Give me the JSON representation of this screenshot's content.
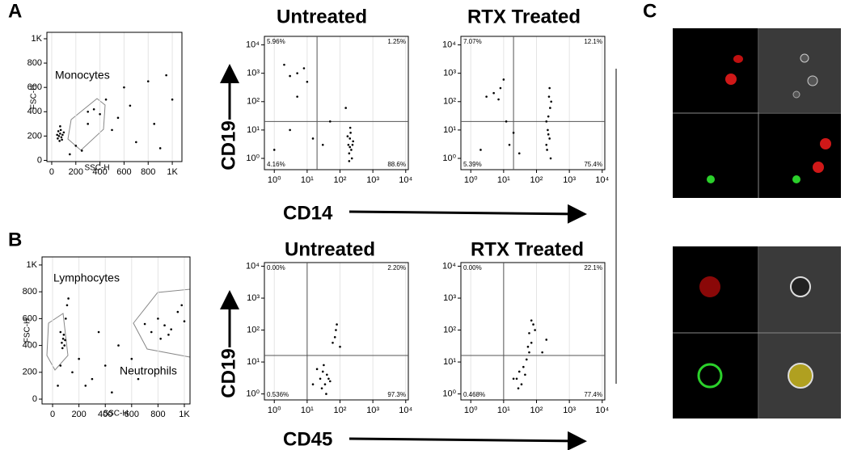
{
  "figure": {
    "panels": [
      "A",
      "B",
      "C"
    ],
    "row_a": {
      "xlabel": "CD14",
      "ylabel": "CD19"
    },
    "row_b": {
      "xlabel": "CD45",
      "ylabel": "CD19"
    }
  },
  "chart_data": [
    {
      "type": "scatter",
      "log": false,
      "color": "#000000",
      "grid": true,
      "xlabel": "SSC-H",
      "ylabel": "FSC-H",
      "annotations": [
        "Monocytes"
      ],
      "xlim": [
        -40,
        1080
      ],
      "ylim": [
        -10,
        1053
      ],
      "xticks": [
        0,
        200,
        400,
        600,
        800,
        {
          "value": 1000,
          "label": "1K"
        }
      ],
      "yticks": [
        0,
        200,
        400,
        600,
        800,
        {
          "value": 1000,
          "label": "1K"
        }
      ],
      "x": [
        50,
        60,
        70,
        80,
        55,
        90,
        65,
        75,
        100,
        45,
        85,
        70,
        200,
        300,
        350,
        400,
        300,
        450,
        500,
        600,
        700,
        800,
        900,
        950,
        1000,
        250,
        150,
        550,
        650,
        850
      ],
      "values": [
        180,
        200,
        220,
        190,
        240,
        210,
        160,
        250,
        230,
        210,
        170,
        280,
        120,
        300,
        420,
        380,
        400,
        500,
        250,
        600,
        150,
        650,
        100,
        700,
        500,
        80,
        50,
        350,
        450,
        300
      ]
    },
    {
      "type": "scatter",
      "log": true,
      "color": "#000000",
      "grid": true,
      "title": "Untreated",
      "quadrant": {
        "x": 20,
        "y": 20
      },
      "quadrant_labels": [
        "5.96%",
        "1.25%",
        "4.16%",
        "88.6%"
      ],
      "xlim": [
        0.5,
        12000
      ],
      "ylim": [
        0.4,
        20000
      ],
      "xticks": [
        {
          "value": 1,
          "label": "10⁰"
        },
        {
          "value": 10,
          "label": "10¹"
        },
        {
          "value": 100,
          "label": "10²"
        },
        {
          "value": 1000,
          "label": "10³"
        },
        {
          "value": 10000,
          "label": "10⁴"
        }
      ],
      "yticks": [
        {
          "value": 1,
          "label": "10⁰"
        },
        {
          "value": 10,
          "label": "10¹"
        },
        {
          "value": 100,
          "label": "10²"
        },
        {
          "value": 1000,
          "label": "10³"
        },
        {
          "value": 10000,
          "label": "10⁴"
        }
      ],
      "x": [
        180,
        200,
        220,
        190,
        250,
        210,
        230,
        170,
        200,
        240,
        205,
        190,
        3,
        5,
        8,
        2,
        10,
        5,
        3,
        15,
        30,
        50,
        150,
        1
      ],
      "values": [
        3,
        5,
        2,
        1.5,
        4,
        8,
        1,
        6,
        2.5,
        3,
        12,
        0.8,
        800,
        1000,
        1500,
        2000,
        500,
        150,
        10,
        5,
        3,
        20,
        60,
        2
      ]
    },
    {
      "type": "scatter",
      "log": true,
      "color": "#000000",
      "grid": true,
      "title": "RTX Treated",
      "quadrant": {
        "x": 20,
        "y": 20
      },
      "quadrant_labels": [
        "7.07%",
        "12.1%",
        "5.39%",
        "75.4%"
      ],
      "xlim": [
        0.5,
        12000
      ],
      "ylim": [
        0.4,
        20000
      ],
      "xticks": [
        {
          "value": 1,
          "label": "10⁰"
        },
        {
          "value": 10,
          "label": "10¹"
        },
        {
          "value": 100,
          "label": "10²"
        },
        {
          "value": 1000,
          "label": "10³"
        },
        {
          "value": 10000,
          "label": "10⁴"
        }
      ],
      "yticks": [
        {
          "value": 1,
          "label": "10⁰"
        },
        {
          "value": 10,
          "label": "10¹"
        },
        {
          "value": 100,
          "label": "10²"
        },
        {
          "value": 1000,
          "label": "10³"
        },
        {
          "value": 10000,
          "label": "10⁴"
        }
      ],
      "x": [
        200,
        250,
        220,
        230,
        260,
        240,
        250,
        210,
        270,
        200,
        280,
        230,
        5,
        8,
        10,
        7,
        3,
        12,
        15,
        2,
        20,
        30
      ],
      "values": [
        3,
        5,
        10,
        30,
        60,
        150,
        300,
        2,
        1,
        20,
        100,
        7,
        200,
        300,
        600,
        120,
        150,
        20,
        3,
        2,
        8,
        1.5
      ]
    },
    {
      "type": "scatter",
      "log": false,
      "color": "#000000",
      "grid": true,
      "xlabel": "SSC-H",
      "ylabel": "FSC-H",
      "annotations": [
        "Lymphocytes",
        "Neutrophils"
      ],
      "xlim": [
        -80,
        1043
      ],
      "ylim": [
        -36,
        1060
      ],
      "xticks": [
        0,
        200,
        400,
        600,
        800,
        {
          "value": 1000,
          "label": "1K"
        }
      ],
      "yticks": [
        0,
        200,
        400,
        600,
        800,
        {
          "value": 1000,
          "label": "1K"
        }
      ],
      "x": [
        70,
        80,
        90,
        85,
        75,
        95,
        60,
        100,
        110,
        120,
        750,
        800,
        850,
        900,
        950,
        1000,
        880,
        820,
        980,
        700,
        200,
        300,
        400,
        500,
        600,
        250,
        350,
        450,
        650,
        150,
        40,
        60
      ],
      "values": [
        420,
        450,
        400,
        480,
        380,
        440,
        500,
        600,
        700,
        750,
        500,
        600,
        550,
        520,
        650,
        580,
        480,
        450,
        700,
        560,
        300,
        150,
        250,
        400,
        300,
        100,
        500,
        50,
        150,
        200,
        100,
        250
      ]
    },
    {
      "type": "scatter",
      "log": true,
      "color": "#000000",
      "grid": true,
      "title": "Untreated",
      "quadrant": {
        "x": 10,
        "y": 16
      },
      "quadrant_labels": [
        "0.00%",
        "2.20%",
        "0.536%",
        "97.3%"
      ],
      "xlim": [
        0.5,
        12000
      ],
      "ylim": [
        0.65,
        13000
      ],
      "xticks": [
        {
          "value": 1,
          "label": "10⁰"
        },
        {
          "value": 10,
          "label": "10¹"
        },
        {
          "value": 100,
          "label": "10²"
        },
        {
          "value": 1000,
          "label": "10³"
        },
        {
          "value": 10000,
          "label": "10⁴"
        }
      ],
      "yticks": [
        {
          "value": 1,
          "label": "10⁰"
        },
        {
          "value": 10,
          "label": "10¹"
        },
        {
          "value": 100,
          "label": "10²"
        },
        {
          "value": 1000,
          "label": "10³"
        },
        {
          "value": 10000,
          "label": "10⁴"
        }
      ],
      "x": [
        25,
        30,
        35,
        40,
        28,
        20,
        45,
        32,
        38,
        50,
        60,
        70,
        80,
        75,
        15,
        100
      ],
      "values": [
        3,
        5,
        2,
        4,
        1.5,
        6,
        3,
        8,
        1,
        2.5,
        40,
        60,
        150,
        100,
        2,
        30
      ]
    },
    {
      "type": "scatter",
      "log": true,
      "color": "#000000",
      "grid": true,
      "title": "RTX Treated",
      "quadrant": {
        "x": 10,
        "y": 16
      },
      "quadrant_labels": [
        "0.00%",
        "22.1%",
        "0.468%",
        "77.4%"
      ],
      "xlim": [
        0.5,
        12000
      ],
      "ylim": [
        0.65,
        13000
      ],
      "xticks": [
        {
          "value": 1,
          "label": "10⁰"
        },
        {
          "value": 10,
          "label": "10¹"
        },
        {
          "value": 100,
          "label": "10²"
        },
        {
          "value": 1000,
          "label": "10³"
        },
        {
          "value": 10000,
          "label": "10⁴"
        }
      ],
      "yticks": [
        {
          "value": 1,
          "label": "10⁰"
        },
        {
          "value": 10,
          "label": "10¹"
        },
        {
          "value": 100,
          "label": "10²"
        },
        {
          "value": 1000,
          "label": "10³"
        },
        {
          "value": 10000,
          "label": "10⁴"
        }
      ],
      "x": [
        25,
        30,
        35,
        40,
        50,
        60,
        70,
        60,
        80,
        70,
        28,
        45,
        90,
        55,
        20,
        150,
        200
      ],
      "values": [
        3,
        5,
        2,
        7,
        12,
        20,
        40,
        80,
        150,
        200,
        1.5,
        4,
        100,
        30,
        3,
        20,
        50
      ]
    }
  ]
}
